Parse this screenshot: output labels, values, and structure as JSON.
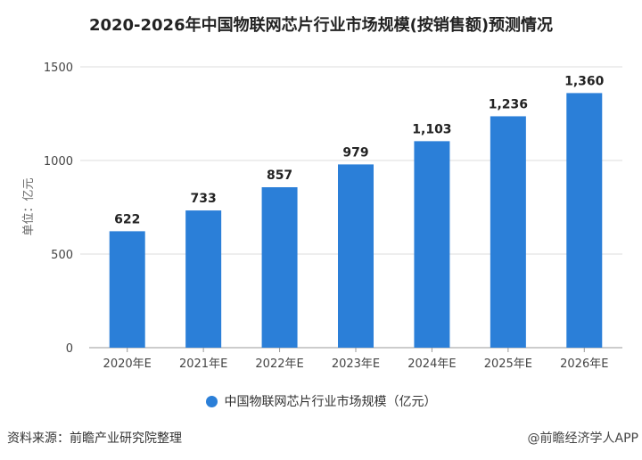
{
  "chart_data": {
    "type": "bar",
    "title": "2020-2026年中国物联网芯片行业市场规模(按销售额)预测情况",
    "categories": [
      "2020年E",
      "2021年E",
      "2022年E",
      "2023年E",
      "2024年E",
      "2025年E",
      "2026年E"
    ],
    "series": [
      {
        "name": "中国物联网芯片行业市场规模（亿元）",
        "values": [
          622,
          733,
          857,
          979,
          1103,
          1236,
          1360
        ]
      }
    ],
    "data_labels": [
      "622",
      "733",
      "857",
      "979",
      "1,103",
      "1,236",
      "1,360"
    ],
    "ylabel": "单位：亿元",
    "ylim": [
      0,
      1500
    ],
    "yticks": [
      0,
      500,
      1000,
      1500
    ],
    "grid": true,
    "legend": "bottom",
    "bar_color": "#2b7fd8"
  },
  "footer": {
    "source": "资料来源：前瞻产业研究院整理",
    "credit": "@前瞻经济学人APP"
  }
}
